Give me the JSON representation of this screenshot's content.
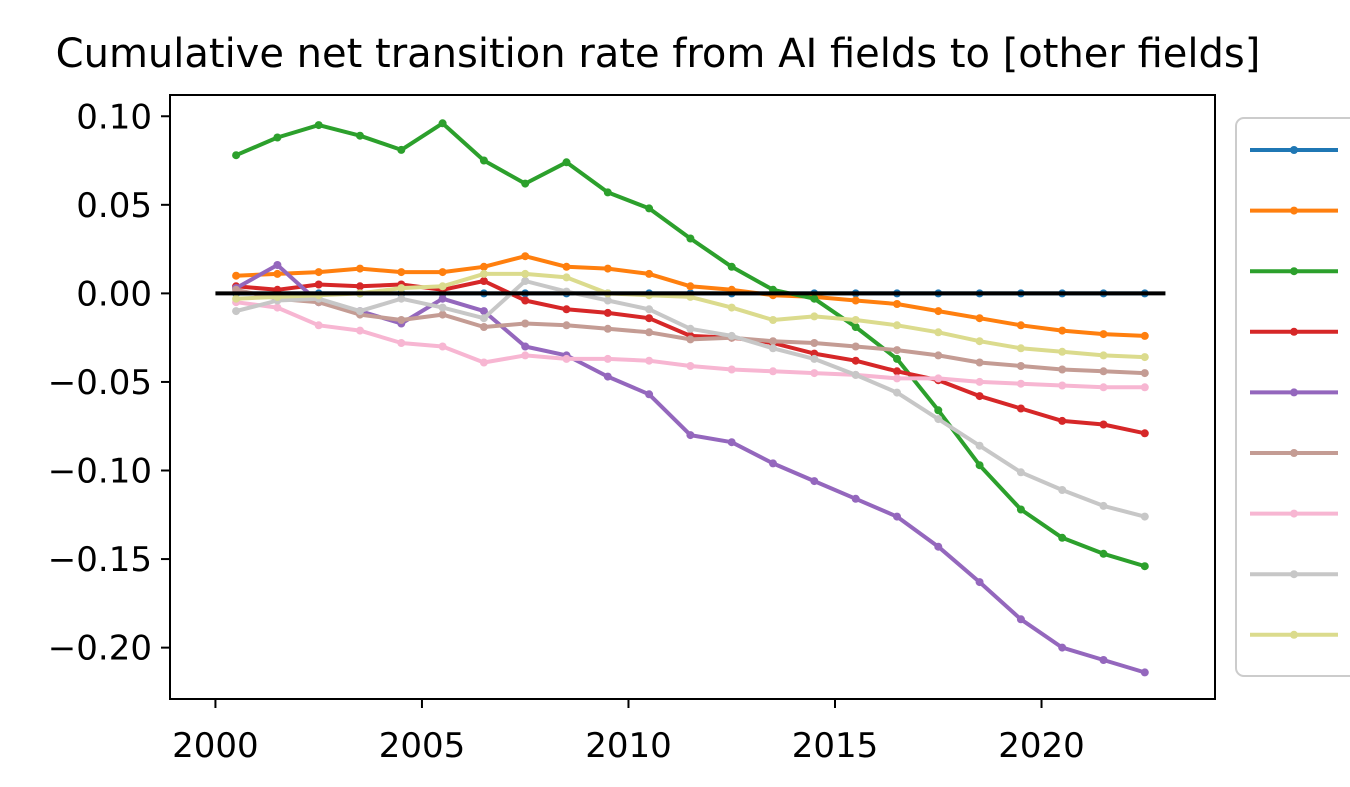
{
  "chart_data": {
    "type": "line",
    "title": "Cumulative net transition rate from AI fields to [other fields]",
    "xlabel": "",
    "ylabel": "",
    "xlim": [
      1998.9,
      2024.2
    ],
    "ylim": [
      -0.229,
      0.112
    ],
    "x_ticks": [
      2000,
      2005,
      2010,
      2015,
      2020
    ],
    "x_tick_labels": [
      "2000",
      "2005",
      "2010",
      "2015",
      "2020"
    ],
    "y_ticks": [
      0.1,
      0.05,
      0.0,
      -0.05,
      -0.1,
      -0.15,
      -0.2
    ],
    "y_tick_labels": [
      "0.10",
      "0.05",
      "0.00",
      "−0.05",
      "−0.10",
      "−0.15",
      "−0.20"
    ],
    "grid": false,
    "legend_position": "right, outside plot area (entry labels cropped)",
    "reference_line": {
      "x": [
        2000,
        2023
      ],
      "y": 0,
      "color": "#000000"
    },
    "x": [
      2000.5,
      2001.5,
      2002.5,
      2003.5,
      2004.5,
      2005.5,
      2006.5,
      2007.5,
      2008.5,
      2009.5,
      2010.5,
      2011.5,
      2012.5,
      2013.5,
      2014.5,
      2015.5,
      2016.5,
      2017.5,
      2018.5,
      2019.5,
      2020.5,
      2021.5,
      2022.5
    ],
    "series": [
      {
        "color": "#1f77b4",
        "values": [
          0,
          0,
          0,
          0,
          0,
          0,
          0,
          0,
          0,
          0,
          0,
          0,
          0,
          0,
          0,
          0,
          0,
          0,
          0,
          0,
          0,
          0,
          0
        ]
      },
      {
        "color": "#ff7f0e",
        "values": [
          0.01,
          0.011,
          0.012,
          0.014,
          0.012,
          0.012,
          0.015,
          0.021,
          0.015,
          0.014,
          0.011,
          0.004,
          0.002,
          -0.001,
          -0.002,
          -0.004,
          -0.006,
          -0.01,
          -0.014,
          -0.018,
          -0.021,
          -0.023,
          -0.024
        ]
      },
      {
        "color": "#2ca02c",
        "values": [
          0.078,
          0.088,
          0.095,
          0.089,
          0.081,
          0.096,
          0.075,
          0.062,
          0.074,
          0.057,
          0.048,
          0.031,
          0.015,
          0.002,
          -0.003,
          -0.019,
          -0.037,
          -0.066,
          -0.097,
          -0.122,
          -0.138,
          -0.147,
          -0.154
        ]
      },
      {
        "color": "#d62728",
        "values": [
          0.004,
          0.002,
          0.005,
          0.004,
          0.005,
          0.002,
          0.007,
          -0.004,
          -0.009,
          -0.011,
          -0.014,
          -0.024,
          -0.025,
          -0.028,
          -0.034,
          -0.038,
          -0.044,
          -0.049,
          -0.058,
          -0.065,
          -0.072,
          -0.074,
          -0.079
        ]
      },
      {
        "color": "#9467bd",
        "values": [
          0.003,
          0.016,
          -0.005,
          -0.01,
          -0.017,
          -0.003,
          -0.01,
          -0.03,
          -0.035,
          -0.047,
          -0.057,
          -0.08,
          -0.084,
          -0.096,
          -0.106,
          -0.116,
          -0.126,
          -0.143,
          -0.163,
          -0.184,
          -0.2,
          -0.207,
          -0.214
        ]
      },
      {
        "color": "#c49c94",
        "values": [
          0.002,
          -0.003,
          -0.005,
          -0.012,
          -0.015,
          -0.012,
          -0.019,
          -0.017,
          -0.018,
          -0.02,
          -0.022,
          -0.026,
          -0.025,
          -0.027,
          -0.028,
          -0.03,
          -0.032,
          -0.035,
          -0.039,
          -0.041,
          -0.043,
          -0.044,
          -0.045
        ]
      },
      {
        "color": "#f7b6d2",
        "values": [
          -0.005,
          -0.008,
          -0.018,
          -0.021,
          -0.028,
          -0.03,
          -0.039,
          -0.035,
          -0.037,
          -0.037,
          -0.038,
          -0.041,
          -0.043,
          -0.044,
          -0.045,
          -0.046,
          -0.048,
          -0.048,
          -0.05,
          -0.051,
          -0.052,
          -0.053,
          -0.053
        ]
      },
      {
        "color": "#c7c7c7",
        "values": [
          -0.01,
          -0.004,
          -0.003,
          -0.01,
          -0.003,
          -0.008,
          -0.014,
          0.007,
          0.001,
          -0.004,
          -0.009,
          -0.02,
          -0.024,
          -0.031,
          -0.037,
          -0.046,
          -0.056,
          -0.071,
          -0.086,
          -0.101,
          -0.111,
          -0.12,
          -0.126
        ]
      },
      {
        "color": "#dbdb8d",
        "values": [
          -0.003,
          -0.002,
          -0.001,
          0.0,
          0.003,
          0.004,
          0.011,
          0.011,
          0.009,
          0.0,
          -0.001,
          -0.002,
          -0.008,
          -0.015,
          -0.013,
          -0.015,
          -0.018,
          -0.022,
          -0.027,
          -0.031,
          -0.033,
          -0.035,
          -0.036
        ]
      }
    ]
  }
}
